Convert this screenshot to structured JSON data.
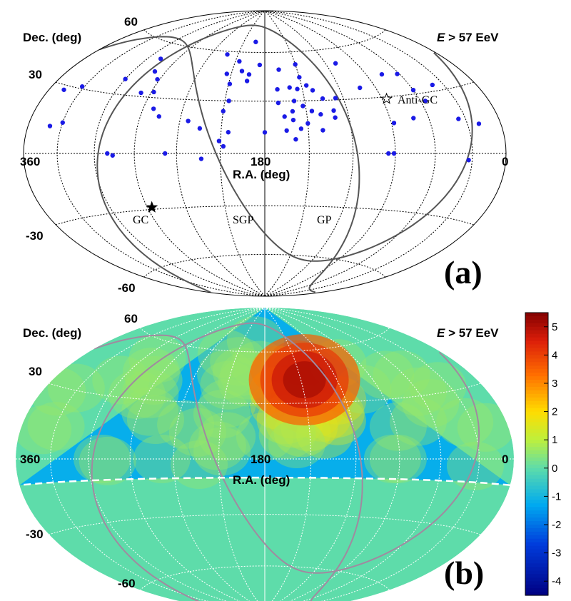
{
  "chart_data": [
    {
      "panel": "(a)",
      "type": "scatter",
      "projection": "hammer-aitoff",
      "xlabel": "R.A. (deg)",
      "ylabel": "Dec. (deg)",
      "energy_label": {
        "var": "E",
        "rest": " > 57 EeV"
      },
      "ra_ticks": [
        "360",
        "180",
        "0"
      ],
      "dec_ticks": [
        "60",
        "30",
        "-30",
        "-60"
      ],
      "markers": [
        {
          "label": "GC",
          "ra": 266.4,
          "dec": -28.9,
          "symbol": "filled-star"
        },
        {
          "label": "Anti-GC",
          "ra": 86.4,
          "dec": 28.9,
          "symbol": "open-star"
        }
      ],
      "curve_labels": [
        "SGP",
        "GP"
      ],
      "events": [
        {
          "ra": 193,
          "dec": 67
        },
        {
          "ra": 222,
          "dec": 58
        },
        {
          "ra": 287,
          "dec": 51
        },
        {
          "ra": 280,
          "dec": 44
        },
        {
          "ra": 272,
          "dec": 40
        },
        {
          "ra": 300,
          "dec": 38
        },
        {
          "ra": 332,
          "dec": 31
        },
        {
          "ra": 346,
          "dec": 28
        },
        {
          "ra": 278,
          "dec": 32
        },
        {
          "ra": 268,
          "dec": 33
        },
        {
          "ra": 262,
          "dec": 24
        },
        {
          "ra": 256,
          "dec": 20
        },
        {
          "ra": 206,
          "dec": 54
        },
        {
          "ra": 214,
          "dec": 46
        },
        {
          "ra": 209,
          "dec": 40
        },
        {
          "ra": 207,
          "dec": 30
        },
        {
          "ra": 210,
          "dec": 24
        },
        {
          "ra": 185,
          "dec": 52
        },
        {
          "ra": 194,
          "dec": 46
        },
        {
          "ra": 201,
          "dec": 48
        },
        {
          "ra": 195,
          "dec": 42
        },
        {
          "ra": 180,
          "dec": 12
        },
        {
          "ra": 205,
          "dec": 12
        },
        {
          "ra": 211,
          "dec": 7
        },
        {
          "ra": 225,
          "dec": 14
        },
        {
          "ra": 234,
          "dec": 18
        },
        {
          "ra": 208,
          "dec": 4
        },
        {
          "ra": 330,
          "dec": 14
        },
        {
          "ra": 340,
          "dec": 12
        },
        {
          "ra": 150,
          "dec": 52
        },
        {
          "ra": 167,
          "dec": 49
        },
        {
          "ra": 150,
          "dec": 44
        },
        {
          "ra": 146,
          "dec": 39
        },
        {
          "ra": 160,
          "dec": 38
        },
        {
          "ra": 170,
          "dec": 37
        },
        {
          "ra": 154,
          "dec": 37
        },
        {
          "ra": 142,
          "dec": 36
        },
        {
          "ra": 136,
          "dec": 31
        },
        {
          "ra": 158,
          "dec": 30
        },
        {
          "ra": 170,
          "dec": 29
        },
        {
          "ra": 152,
          "dec": 27
        },
        {
          "ra": 160,
          "dec": 24
        },
        {
          "ra": 146,
          "dec": 24
        },
        {
          "ra": 140,
          "dec": 22
        },
        {
          "ra": 126,
          "dec": 31
        },
        {
          "ra": 130,
          "dec": 24
        },
        {
          "ra": 166,
          "dec": 21
        },
        {
          "ra": 160,
          "dec": 19
        },
        {
          "ra": 130,
          "dec": 20
        },
        {
          "ra": 150,
          "dec": 17
        },
        {
          "ra": 155,
          "dec": 14
        },
        {
          "ra": 165,
          "dec": 13
        },
        {
          "ra": 140,
          "dec": 13
        },
        {
          "ra": 159,
          "dec": 8
        },
        {
          "ra": 110,
          "dec": 51
        },
        {
          "ra": 103,
          "dec": 36
        },
        {
          "ra": 76,
          "dec": 42
        },
        {
          "ra": 62,
          "dec": 41
        },
        {
          "ra": 60,
          "dec": 32
        },
        {
          "ra": 56,
          "dec": 26
        },
        {
          "ra": 40,
          "dec": 33
        },
        {
          "ra": 36,
          "dec": 16
        },
        {
          "ra": 20,
          "dec": 13
        },
        {
          "ra": 88,
          "dec": 16
        },
        {
          "ra": 72,
          "dec": 18
        },
        {
          "ra": 95,
          "dec": 0
        },
        {
          "ra": 91,
          "dec": 0
        },
        {
          "ra": 33,
          "dec": -3
        },
        {
          "ra": 290,
          "dec": 0
        },
        {
          "ra": 286,
          "dec": -1
        },
        {
          "ra": 248,
          "dec": 0
        },
        {
          "ra": 223,
          "dec": -3
        }
      ]
    },
    {
      "panel": "(b)",
      "type": "heatmap",
      "projection": "hammer-aitoff",
      "xlabel": "R.A. (deg)",
      "ylabel": "Dec. (deg)",
      "energy_label": {
        "var": "E",
        "rest": " > 57 EeV"
      },
      "ra_ticks": [
        "360",
        "180",
        "0"
      ],
      "dec_ticks": [
        "60",
        "30",
        "-30",
        "-60"
      ],
      "colorbar": {
        "min": -4.5,
        "max": 5.5,
        "ticks": [
          "5",
          "4",
          "3",
          "2",
          "1",
          "0",
          "-1",
          "-2",
          "-3",
          "-4"
        ]
      },
      "field_of_view_dec_limit": -10,
      "hotspot": {
        "ra": 147,
        "dec": 43,
        "peak": 5.1
      }
    }
  ]
}
